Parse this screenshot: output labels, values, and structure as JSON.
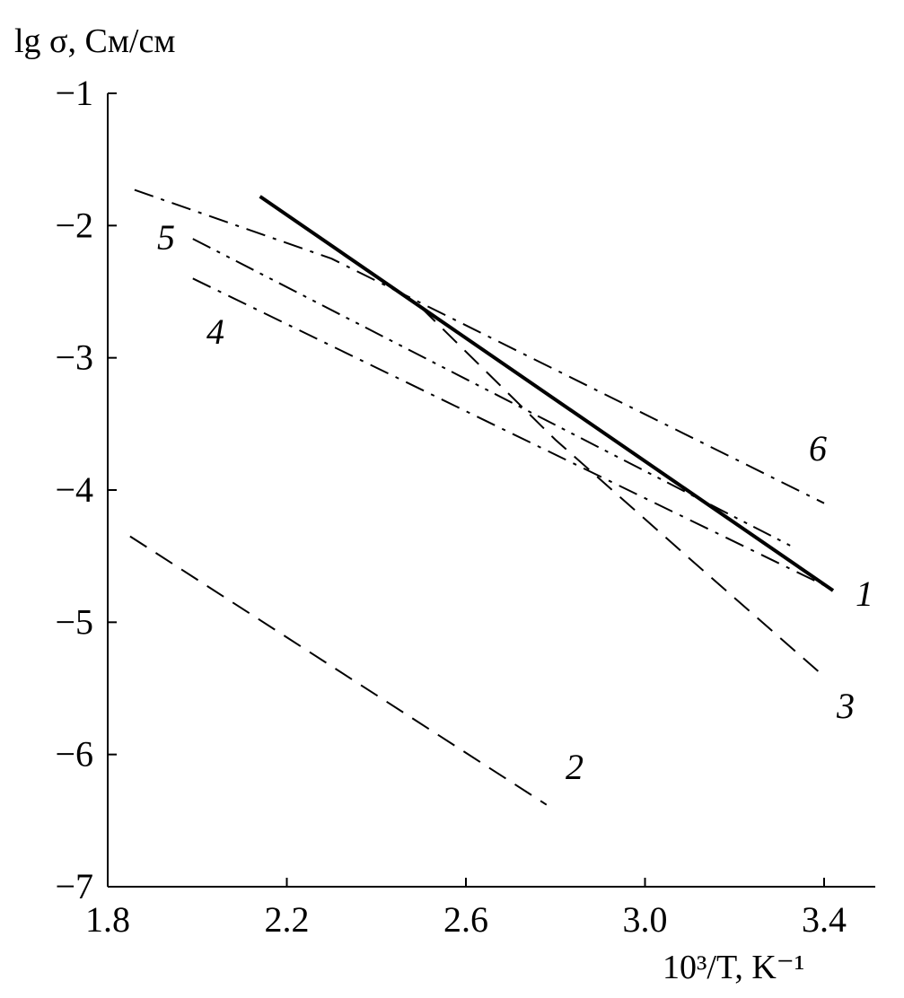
{
  "chart_data": {
    "type": "line",
    "ylabel": "lg σ, См/см",
    "xlabel": "10³/T, K⁻¹",
    "xlim": [
      1.8,
      3.5
    ],
    "ylim": [
      -7,
      -1
    ],
    "x_ticks": [
      "1.8",
      "2.2",
      "2.6",
      "3.0",
      "3.4"
    ],
    "x_tick_values": [
      1.8,
      2.2,
      2.6,
      3.0,
      3.4
    ],
    "y_ticks": [
      "−1",
      "−2",
      "−3",
      "−4",
      "−5",
      "−6",
      "−7"
    ],
    "y_tick_values": [
      -1,
      -2,
      -3,
      -4,
      -5,
      -6,
      -7
    ],
    "grid": false,
    "series": [
      {
        "name": "1",
        "style": "solid",
        "x": [
          2.14,
          3.42
        ],
        "y": [
          -1.78,
          -4.76
        ]
      },
      {
        "name": "2",
        "style": "dashed",
        "x": [
          1.85,
          2.78
        ],
        "y": [
          -4.35,
          -6.38
        ]
      },
      {
        "name": "3",
        "style": "dashed",
        "x": [
          2.5,
          2.8,
          3.1,
          3.39
        ],
        "y": [
          -2.62,
          -3.62,
          -4.52,
          -5.38
        ]
      },
      {
        "name": "4",
        "style": "dashdot",
        "x": [
          1.99,
          3.4
        ],
        "y": [
          -2.4,
          -4.72
        ]
      },
      {
        "name": "5",
        "style": "dashdotdot",
        "x": [
          1.99,
          3.33
        ],
        "y": [
          -2.1,
          -4.43
        ]
      },
      {
        "name": "6",
        "style": "dashdot",
        "x": [
          1.86,
          2.3,
          3.4
        ],
        "y": [
          -1.73,
          -2.25,
          -4.1
        ]
      }
    ]
  }
}
